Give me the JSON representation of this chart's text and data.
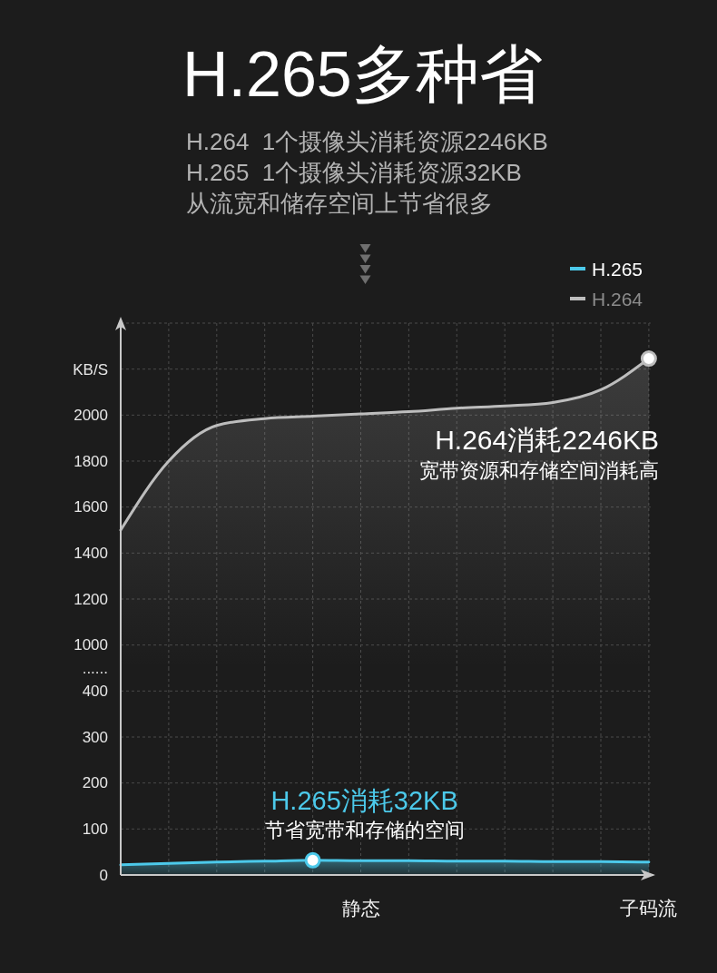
{
  "chart_data": [
    {
      "type": "area",
      "title": "H.265多种省",
      "subtitle": "H.264  1个摄像头消耗资源2246KB\nH.265  1个摄像头消耗资源32KB\n从流宽和储存空间上节省很多",
      "ylabel": "KB/S",
      "categories": [
        null,
        null,
        null,
        null,
        null,
        null,
        null,
        null,
        null,
        null,
        null,
        null
      ],
      "ylim": [
        900,
        2400
      ],
      "yticks": [
        1000,
        1200,
        1400,
        1600,
        1800,
        2000,
        {
          "value": 2200,
          "label": null
        },
        {
          "value": 2400,
          "label": null
        }
      ],
      "series": [
        {
          "name": "H.264",
          "color": "#bdbdbd",
          "values": [
            1500,
            1800,
            1955,
            1985,
            1995,
            2005,
            2015,
            2030,
            2040,
            2055,
            2110,
            2246
          ]
        },
        {
          "type": "scatter",
          "marker": "circle",
          "color": "#bdbdbd",
          "values": [
            null,
            null,
            null,
            null,
            null,
            null,
            null,
            null,
            null,
            null,
            null,
            2246
          ]
        }
      ],
      "annotations": [
        "H.264消耗2246KB\n宽带资源和存储空间消耗高"
      ],
      "grid": true,
      "legend": "top right",
      "tick_labels": "y"
    },
    {
      "type": "area",
      "categories": [
        null,
        null,
        null,
        null,
        null,
        "静态",
        null,
        null,
        null,
        null,
        null,
        "子码流"
      ],
      "ylim": [
        0,
        450
      ],
      "yticks": [
        0,
        100,
        200,
        300,
        400,
        {
          "value": 450,
          "label": "......"
        }
      ],
      "series": [
        {
          "name": "H.265",
          "color": "#4cc9ea",
          "values": [
            22,
            25,
            28,
            30,
            32,
            31,
            31,
            30,
            30,
            29,
            29,
            28
          ]
        },
        {
          "type": "scatter",
          "marker": "circle",
          "color": "#4cc9ea",
          "values": [
            null,
            null,
            null,
            null,
            32,
            null,
            null,
            null,
            null,
            null,
            null,
            null
          ]
        }
      ],
      "annotations": [
        {
          "text": "H.265消耗32KB\n节省宽带和存储的空间",
          "y": 32
        }
      ],
      "grid": true
    }
  ]
}
